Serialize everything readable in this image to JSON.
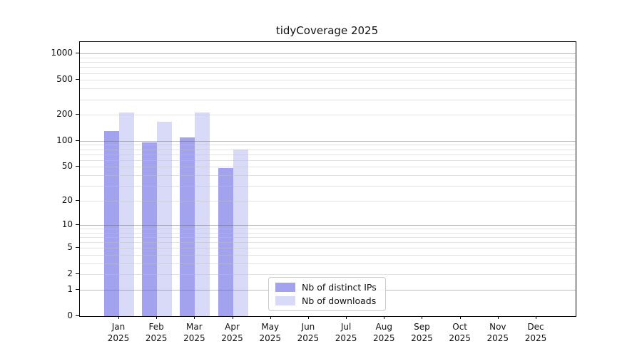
{
  "figure": {
    "title": "tidyCoverage 2025"
  },
  "colors": {
    "ips_bar": "#a2a2ef",
    "downloads_bar": "#d9d9f8",
    "grid_major": "rgba(100,100,100,0.45)",
    "grid_minor": "rgba(190,190,190,0.45)",
    "axis_spine": "#000000",
    "text": "#111111",
    "legend_border": "#cccccc",
    "background": "#ffffff"
  },
  "chart_data": {
    "type": "bar",
    "title": "tidyCoverage 2025",
    "xlabel": "",
    "ylabel": "",
    "categories": [
      "Jan",
      "Feb",
      "Mar",
      "Apr",
      "May",
      "Jun",
      "Jul",
      "Aug",
      "Sep",
      "Oct",
      "Nov",
      "Dec"
    ],
    "category_year": "2025",
    "series": [
      {
        "key": "ips",
        "name": "Nb of distinct IPs",
        "color": "#a2a2ef",
        "values": [
          130,
          95,
          110,
          48,
          0,
          0,
          0,
          0,
          0,
          0,
          0,
          0
        ]
      },
      {
        "key": "downloads",
        "name": "Nb of downloads",
        "color": "#d9d9f8",
        "values": [
          210,
          165,
          210,
          80,
          0,
          0,
          0,
          0,
          0,
          0,
          0,
          0
        ]
      }
    ],
    "yscale": "log1p",
    "ylim": [
      0,
      1360
    ],
    "yticks": [
      0,
      1,
      2,
      5,
      10,
      20,
      50,
      100,
      200,
      500,
      1000
    ],
    "ytick_labels": [
      "0",
      "1",
      "2",
      "5",
      "10",
      "20",
      "50",
      "100",
      "200",
      "500",
      "1000"
    ],
    "grid": true,
    "grid_major_at": [
      1,
      10,
      100,
      1000
    ],
    "grid_minor_decades": [
      1,
      10,
      100
    ],
    "legend": {
      "position": "lower center",
      "entries": [
        "Nb of distinct IPs",
        "Nb of downloads"
      ]
    }
  }
}
